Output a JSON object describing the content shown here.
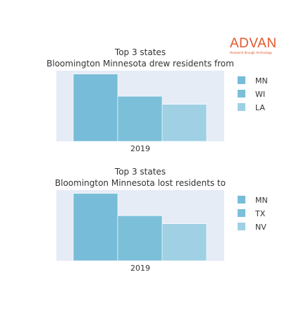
{
  "logo": {
    "name": "ADVAN",
    "tagline": "Research through Technology",
    "color": "#e2572b"
  },
  "colors": {
    "plot_bg": "#e5ecf6",
    "series": [
      "#77bcd8",
      "#7cbfd9",
      "#9fd0e4"
    ]
  },
  "chart_data": [
    {
      "type": "bar",
      "title": "Top 3 states",
      "subtitle": "Bloomington Minnesota drew residents from",
      "categories": [
        "2019"
      ],
      "series": [
        {
          "name": "MN",
          "values": [
            100
          ]
        },
        {
          "name": "WI",
          "values": [
            67
          ]
        },
        {
          "name": "LA",
          "values": [
            55
          ]
        }
      ],
      "xlabel": "",
      "ylabel": "",
      "ylim": [
        0,
        105
      ],
      "legend": "right",
      "grid": false
    },
    {
      "type": "bar",
      "title": "Top 3 states",
      "subtitle": "Bloomington Minnesota lost residents to",
      "categories": [
        "2019"
      ],
      "series": [
        {
          "name": "MN",
          "values": [
            100
          ]
        },
        {
          "name": "TX",
          "values": [
            67
          ]
        },
        {
          "name": "NV",
          "values": [
            55
          ]
        }
      ],
      "xlabel": "",
      "ylabel": "",
      "ylim": [
        0,
        105
      ],
      "legend": "right",
      "grid": false
    }
  ]
}
